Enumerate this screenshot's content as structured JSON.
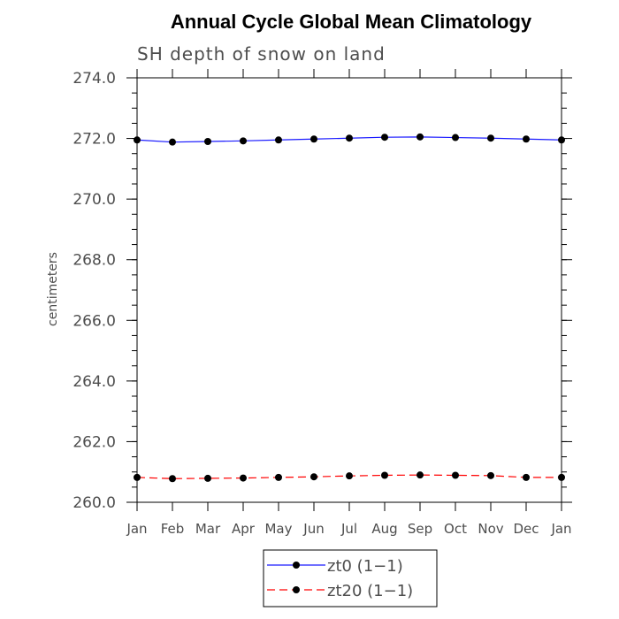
{
  "chart_data": {
    "type": "line",
    "title": "Annual Cycle Global Mean Climatology",
    "subtitle": "SH depth of snow on land",
    "ylabel": "centimeters",
    "xlabel": "",
    "ylim": [
      260.0,
      274.0
    ],
    "yticks": [
      "260.0",
      "262.0",
      "264.0",
      "266.0",
      "268.0",
      "270.0",
      "272.0",
      "274.0"
    ],
    "categories": [
      "Jan",
      "Feb",
      "Mar",
      "Apr",
      "May",
      "Jun",
      "Jul",
      "Aug",
      "Sep",
      "Oct",
      "Nov",
      "Dec",
      "Jan"
    ],
    "grid": false,
    "legend_position": "bottom-center",
    "series": [
      {
        "name": "zt0 (1−1)",
        "color": "#1a1aff",
        "dash": "solid",
        "marker": "filled-circle",
        "values": [
          271.95,
          271.88,
          271.9,
          271.92,
          271.95,
          271.98,
          272.01,
          272.04,
          272.05,
          272.03,
          272.01,
          271.98,
          271.95
        ]
      },
      {
        "name": "zt20 (1−1)",
        "color": "#ff0000",
        "dash": "dashed",
        "marker": "filled-circle",
        "values": [
          260.82,
          260.78,
          260.79,
          260.8,
          260.82,
          260.84,
          260.87,
          260.89,
          260.9,
          260.89,
          260.88,
          260.82,
          260.82
        ]
      }
    ]
  }
}
